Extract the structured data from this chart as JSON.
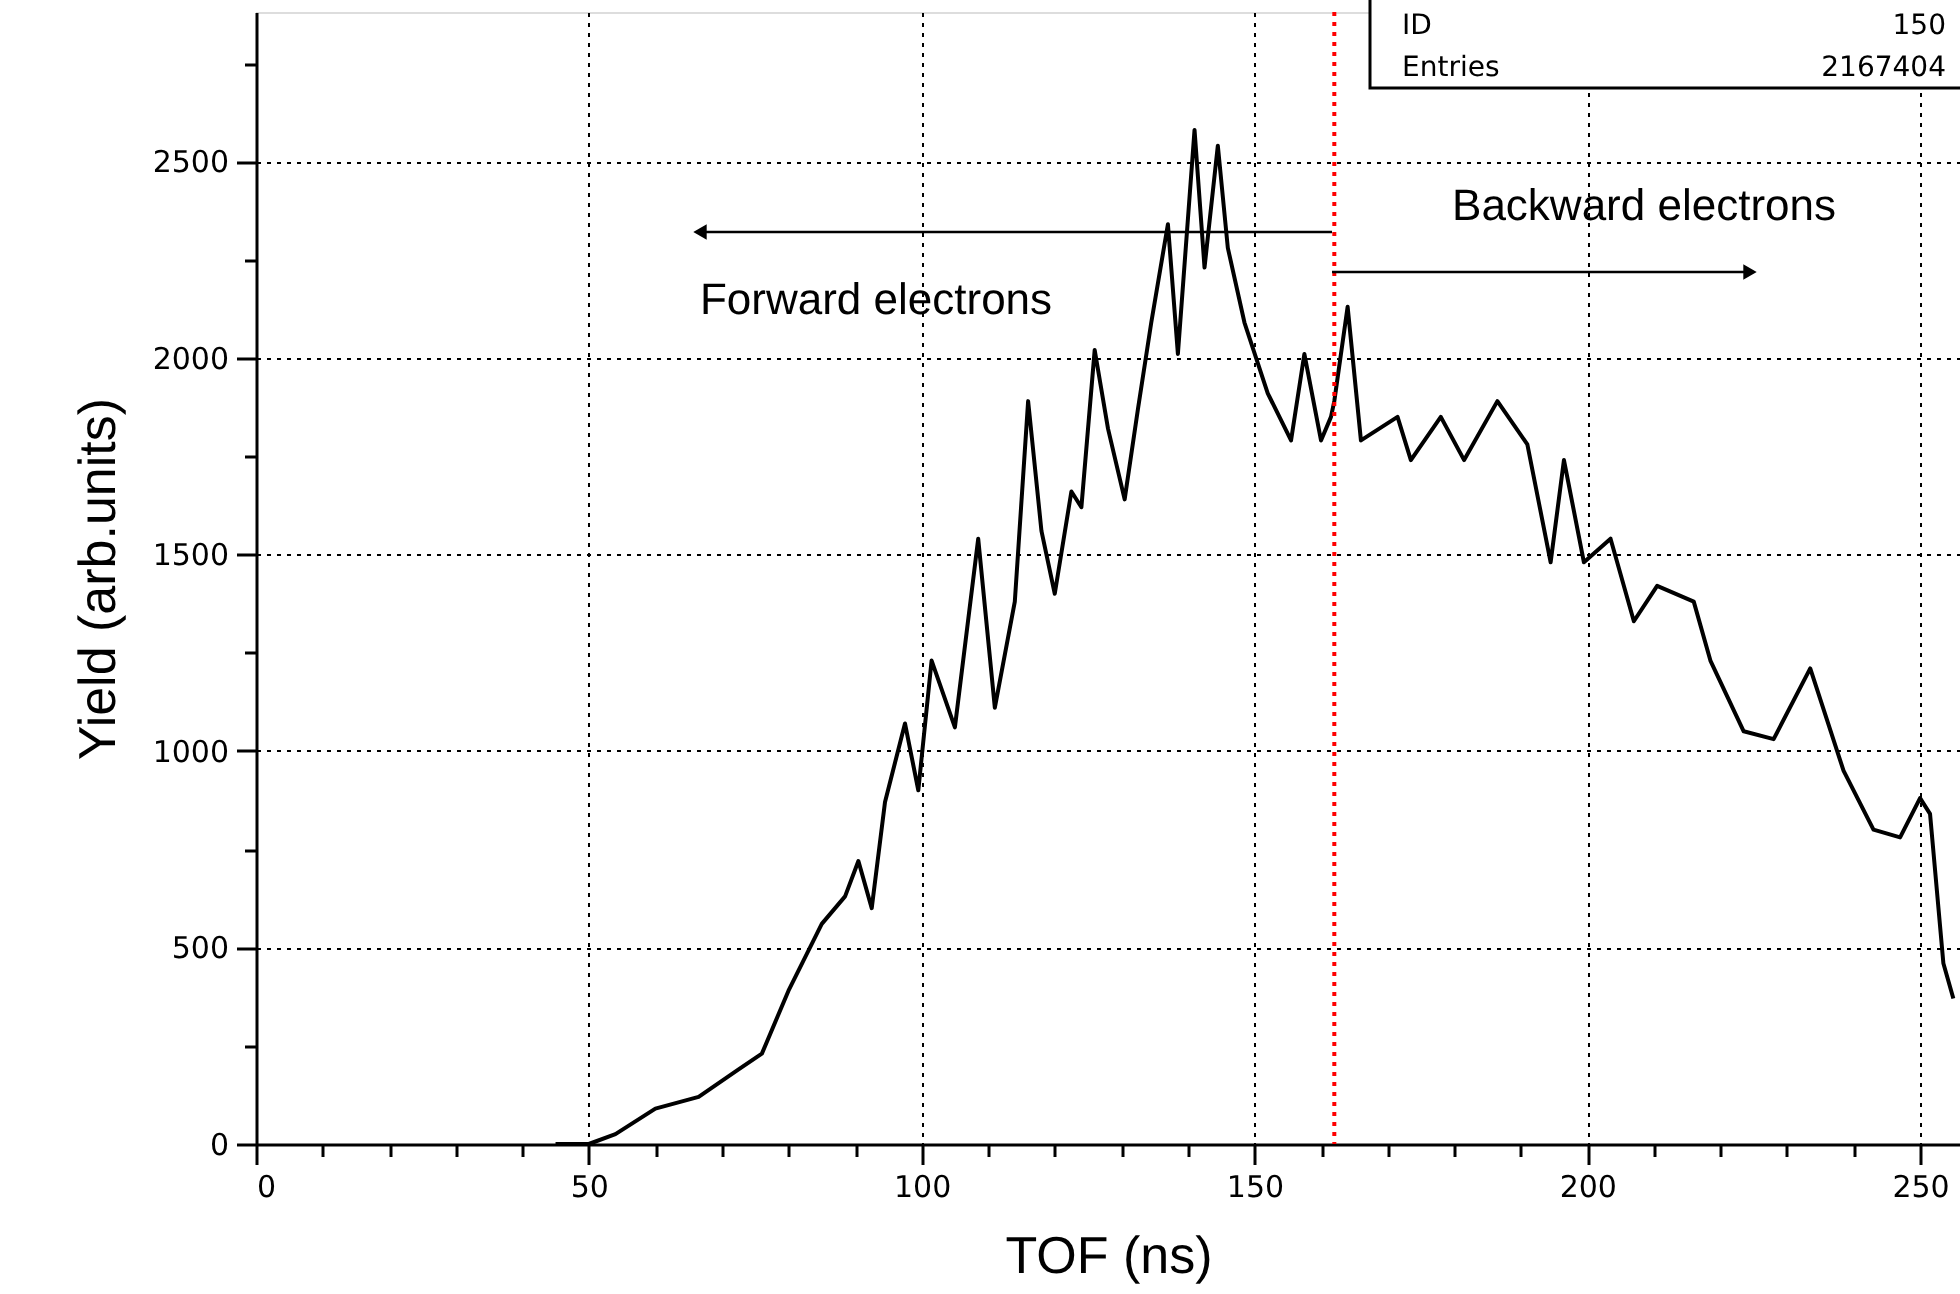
{
  "chart_data": {
    "type": "line",
    "xlabel": "TOF (ns)",
    "ylabel": "Yield (arb.units)",
    "xlim": [
      0,
      256
    ],
    "ylim": [
      0,
      2880
    ],
    "xticks": [
      0,
      {
        "value": 10,
        "label": null
      },
      {
        "value": 20,
        "label": null
      },
      {
        "value": 30,
        "label": null
      },
      {
        "value": 40,
        "label": null
      },
      50,
      {
        "value": 60,
        "label": null
      },
      {
        "value": 70,
        "label": null
      },
      {
        "value": 80,
        "label": null
      },
      {
        "value": 90,
        "label": null
      },
      100,
      {
        "value": 110,
        "label": null
      },
      {
        "value": 120,
        "label": null
      },
      {
        "value": 130,
        "label": null
      },
      {
        "value": 140,
        "label": null
      },
      150,
      {
        "value": 160,
        "label": null
      },
      {
        "value": 170,
        "label": null
      },
      {
        "value": 180,
        "label": null
      },
      {
        "value": 190,
        "label": null
      },
      200,
      {
        "value": 210,
        "label": null
      },
      {
        "value": 220,
        "label": null
      },
      {
        "value": 230,
        "label": null
      },
      {
        "value": 240,
        "label": null
      },
      250
    ],
    "yticks": [
      0,
      {
        "value": 250,
        "label": null
      },
      500,
      {
        "value": 750,
        "label": null
      },
      1000,
      {
        "value": 1250,
        "label": null
      },
      1500,
      {
        "value": 1750,
        "label": null
      },
      2000,
      {
        "value": 2250,
        "label": null
      },
      2500,
      {
        "value": 2750,
        "label": null
      }
    ],
    "grid": true,
    "series": [
      {
        "color": "#000000",
        "x": [
          45,
          47,
          50,
          54,
          60,
          66.5,
          72.5,
          76,
          80,
          85,
          88.5,
          90.5,
          92.5,
          94.5,
          97.5,
          99.5,
          101.5,
          105,
          108.5,
          111,
          114,
          116,
          118,
          120,
          122.5,
          124,
          126,
          128,
          130.5,
          132.5,
          134.5,
          137,
          138.5,
          141,
          142.5,
          144.5,
          146,
          148.5,
          152,
          155.5,
          157.5,
          160,
          161.5,
          162,
          164,
          166,
          171.5,
          173.5,
          178,
          181.5,
          186.5,
          191,
          194.5,
          196.5,
          199.5,
          203.5,
          207,
          210.5,
          216,
          218.5,
          223.5,
          228,
          233.5,
          238.5,
          243,
          247,
          250,
          251.5,
          253.5,
          255
        ],
        "values": [
          0,
          0,
          0,
          25,
          90,
          120,
          190,
          230,
          390,
          560,
          630,
          720,
          600,
          870,
          1070,
          900,
          1230,
          1060,
          1540,
          1110,
          1380,
          1890,
          1560,
          1400,
          1660,
          1620,
          2020,
          1820,
          1640,
          1870,
          2090,
          2340,
          2010,
          2580,
          2230,
          2540,
          2280,
          2090,
          1910,
          1790,
          2010,
          1790,
          1850,
          1890,
          2130,
          1790,
          1850,
          1740,
          1850,
          1740,
          1890,
          1780,
          1480,
          1740,
          1480,
          1540,
          1330,
          1420,
          1380,
          1230,
          1050,
          1030,
          1210,
          950,
          800,
          780,
          880,
          840,
          460,
          370
        ]
      }
    ],
    "ref_lines": [
      {
        "axis": "x",
        "value": 162,
        "color": "#ff0000",
        "line_style": "dotted"
      }
    ],
    "annotations": [
      "Forward electrons",
      "Backward electrons",
      "ID",
      "150",
      "Entries",
      "2167404"
    ]
  }
}
